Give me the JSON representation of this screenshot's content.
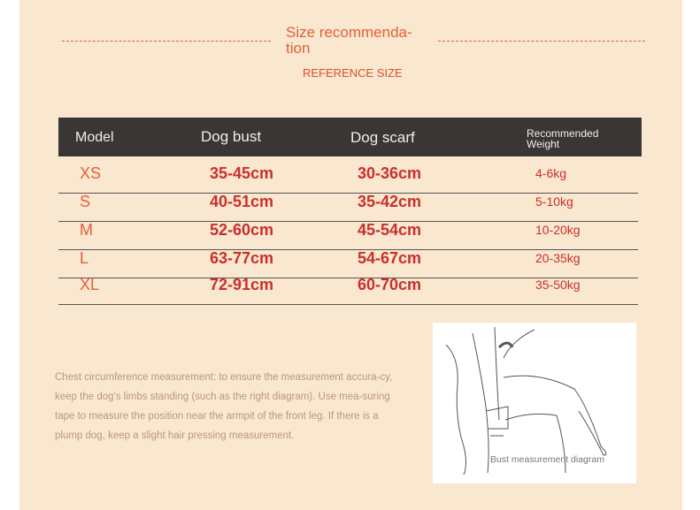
{
  "header": {
    "title": "Size recommenda-\ntion",
    "title_line1": "Size recommenda-",
    "title_line2": "tion",
    "subtitle": "REFERENCE SIZE"
  },
  "table": {
    "headers": [
      "Model",
      "Dog bust",
      "Dog scarf",
      "Recommended Weight"
    ],
    "rows": [
      {
        "model": "XS",
        "bust": "35-45cm",
        "scarf": "30-36cm",
        "weight": "4-6kg"
      },
      {
        "model": "S",
        "bust": "40-51cm",
        "scarf": "35-42cm",
        "weight": "5-10kg"
      },
      {
        "model": "M",
        "bust": "52-60cm",
        "scarf": "45-54cm",
        "weight": "10-20kg"
      },
      {
        "model": "L",
        "bust": "63-77cm",
        "scarf": "54-67cm",
        "weight": "20-35kg"
      },
      {
        "model": "XL",
        "bust": "72-91cm",
        "scarf": "60-70cm",
        "weight": "35-50kg"
      }
    ]
  },
  "note": "Chest circumference measurement: to ensure the measurement accura-cy, keep the dog's limbs standing (such as the right diagram). Use mea-suring tape to measure the position near the armpit of the front leg. If there is a plump dog, keep a slight hair pressing measurement.",
  "diagram": {
    "caption": "Bust measurement diagram"
  },
  "colors": {
    "accent": "#e0603a",
    "header_bg": "#3a3634",
    "background": "#f9e7cf"
  }
}
